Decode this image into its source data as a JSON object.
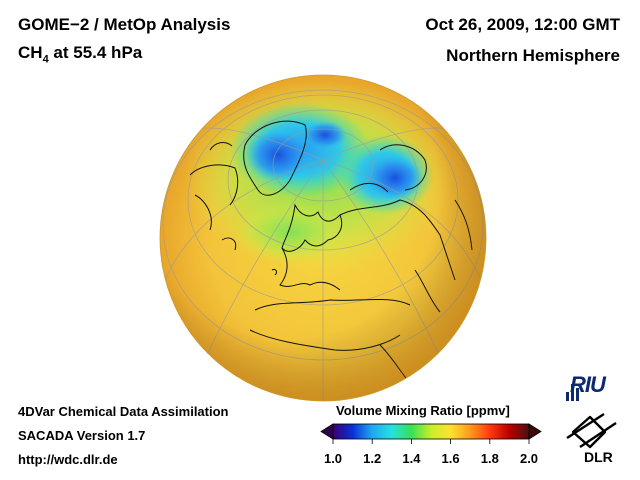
{
  "header": {
    "product_title": "GOME−2 / MetOp Analysis",
    "species": "CH",
    "species_subscript": "4",
    "level": " at 55.4 hPa",
    "datetime": "Oct 26, 2009, 12:00 GMT",
    "region": "Northern Hemisphere"
  },
  "footer": {
    "method": "4DVar Chemical Data Assimilation",
    "version": "SACADA Version 1.7",
    "url": "http://wdc.dlr.de"
  },
  "colorbar": {
    "title": "Volume Mixing Ratio [ppmv]",
    "ticks": [
      "1.0",
      "1.2",
      "1.4",
      "1.6",
      "1.8",
      "2.0"
    ],
    "min": 1.0,
    "max": 2.0,
    "colors": [
      "#3a0070",
      "#0a2fd8",
      "#1fa8f0",
      "#26e0e0",
      "#3ae055",
      "#c8ee2c",
      "#ffe033",
      "#ff9a1c",
      "#ff3a10",
      "#b80000",
      "#4a1010"
    ]
  },
  "logos": {
    "riu": "RIU",
    "dlr": "DLR"
  }
}
